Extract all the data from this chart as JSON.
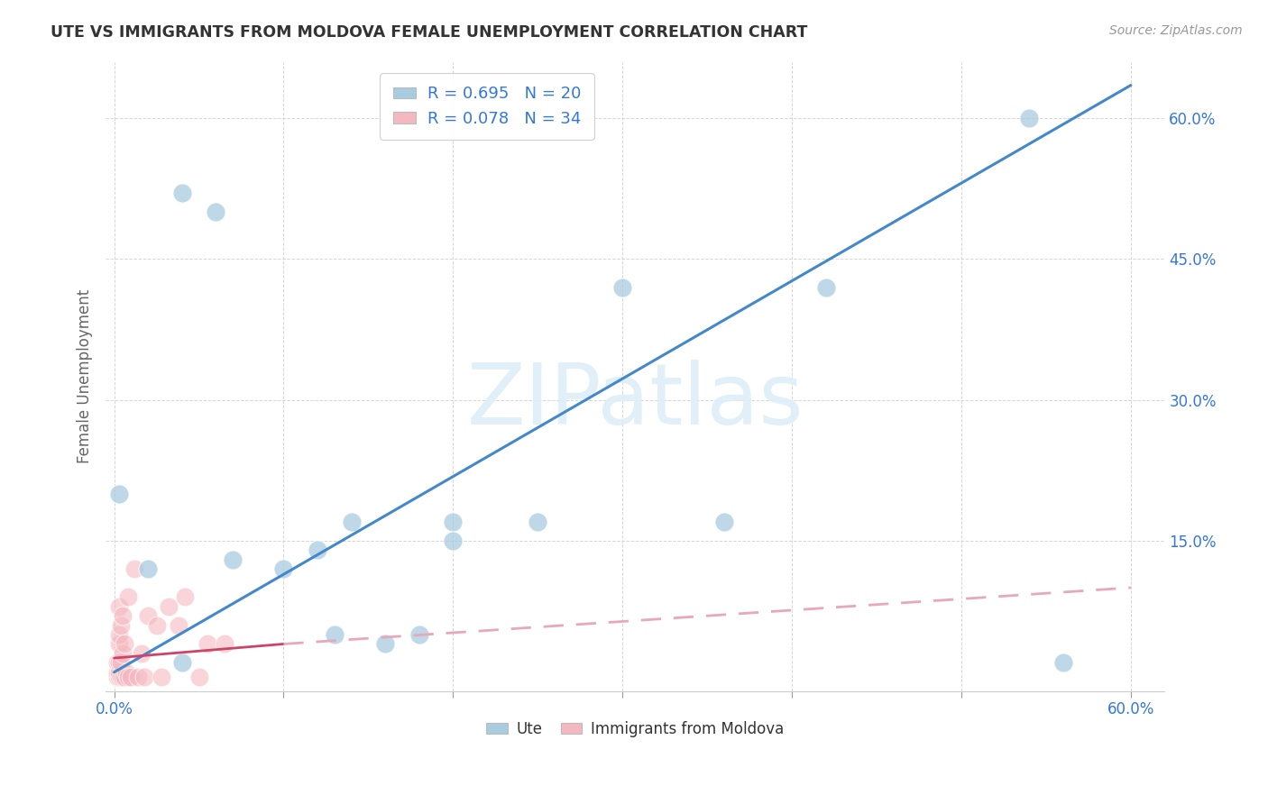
{
  "title": "UTE VS IMMIGRANTS FROM MOLDOVA FEMALE UNEMPLOYMENT CORRELATION CHART",
  "source": "Source: ZipAtlas.com",
  "ylabel": "Female Unemployment",
  "ytick_labels": [
    "15.0%",
    "30.0%",
    "45.0%",
    "60.0%"
  ],
  "ytick_values": [
    0.15,
    0.3,
    0.45,
    0.6
  ],
  "xtick_values": [
    0.0,
    0.1,
    0.2,
    0.3,
    0.4,
    0.5,
    0.6
  ],
  "xlim": [
    -0.005,
    0.62
  ],
  "ylim": [
    -0.01,
    0.66
  ],
  "legend_ute_label": "R = 0.695   N = 20",
  "legend_moldova_label": "R = 0.078   N = 34",
  "ute_color": "#a8cce0",
  "moldova_color": "#f5b8c0",
  "ute_line_color": "#4488cc",
  "moldova_line_color": "#cc4466",
  "moldova_dash_color": "#e8a8b8",
  "watermark": "ZIPatlas",
  "ute_scatter_x": [
    0.003,
    0.02,
    0.04,
    0.04,
    0.06,
    0.07,
    0.1,
    0.12,
    0.13,
    0.14,
    0.16,
    0.18,
    0.2,
    0.2,
    0.25,
    0.3,
    0.36,
    0.42,
    0.54,
    0.56
  ],
  "ute_scatter_y": [
    0.2,
    0.12,
    0.52,
    0.02,
    0.5,
    0.13,
    0.12,
    0.14,
    0.05,
    0.17,
    0.04,
    0.05,
    0.17,
    0.15,
    0.17,
    0.42,
    0.17,
    0.42,
    0.6,
    0.02
  ],
  "moldova_scatter_x": [
    0.002,
    0.002,
    0.002,
    0.003,
    0.003,
    0.003,
    0.003,
    0.003,
    0.003,
    0.004,
    0.004,
    0.004,
    0.005,
    0.005,
    0.005,
    0.006,
    0.006,
    0.007,
    0.008,
    0.008,
    0.01,
    0.012,
    0.014,
    0.016,
    0.018,
    0.02,
    0.025,
    0.028,
    0.032,
    0.038,
    0.042,
    0.05,
    0.055,
    0.065
  ],
  "moldova_scatter_y": [
    0.005,
    0.01,
    0.02,
    0.005,
    0.01,
    0.02,
    0.04,
    0.05,
    0.08,
    0.005,
    0.02,
    0.06,
    0.005,
    0.03,
    0.07,
    0.005,
    0.04,
    0.01,
    0.005,
    0.09,
    0.005,
    0.12,
    0.005,
    0.03,
    0.005,
    0.07,
    0.06,
    0.005,
    0.08,
    0.06,
    0.09,
    0.005,
    0.04,
    0.04
  ],
  "ute_line_x": [
    0.0,
    0.6
  ],
  "ute_line_y": [
    0.01,
    0.635
  ],
  "moldova_solid_line_x": [
    0.0,
    0.1
  ],
  "moldova_solid_line_y": [
    0.025,
    0.04
  ],
  "moldova_dash_line_x": [
    0.1,
    0.6
  ],
  "moldova_dash_line_y": [
    0.04,
    0.1
  ]
}
